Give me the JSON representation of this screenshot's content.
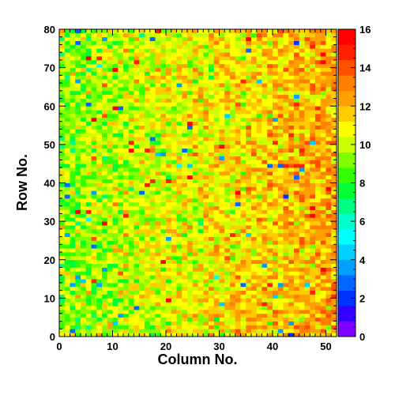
{
  "chart_data": {
    "type": "heatmap",
    "title": "",
    "xlabel": "Column No.",
    "ylabel": "Row No.",
    "xlim": [
      0,
      52
    ],
    "ylim": [
      0,
      80
    ],
    "x_bins": 52,
    "y_bins": 80,
    "x_ticks": [
      0,
      10,
      20,
      30,
      40,
      50
    ],
    "y_ticks": [
      0,
      10,
      20,
      30,
      40,
      50,
      60,
      70,
      80
    ],
    "x_tick_labels": [
      "0",
      "10",
      "20",
      "30",
      "40",
      "50"
    ],
    "y_tick_labels": [
      "0",
      "10",
      "20",
      "30",
      "40",
      "50",
      "60",
      "70",
      "80"
    ],
    "z_range": [
      0,
      16
    ],
    "colorbar_ticks": [
      0,
      2,
      4,
      6,
      8,
      10,
      12,
      14,
      16
    ],
    "colorbar_tick_labels": [
      "0",
      "2",
      "4",
      "6",
      "8",
      "10",
      "12",
      "14",
      "16"
    ],
    "colorbar_colors": [
      "#7f00ff",
      "#3300ff",
      "#0033ff",
      "#0066ff",
      "#00a0ff",
      "#00d0ff",
      "#00ffff",
      "#00ffcc",
      "#00ff80",
      "#00ff33",
      "#33ff00",
      "#80ff00",
      "#ccff00",
      "#ffff00",
      "#ffcc00",
      "#ffa000",
      "#ff8000",
      "#ff5000",
      "#ff2000",
      "#ff0000"
    ],
    "value_description": "Per-cell counts mostly 8-12, rising from ~9 at low column numbers to ~12-13 at high column numbers; scattered outliers down to ~2 and up to ~15."
  }
}
